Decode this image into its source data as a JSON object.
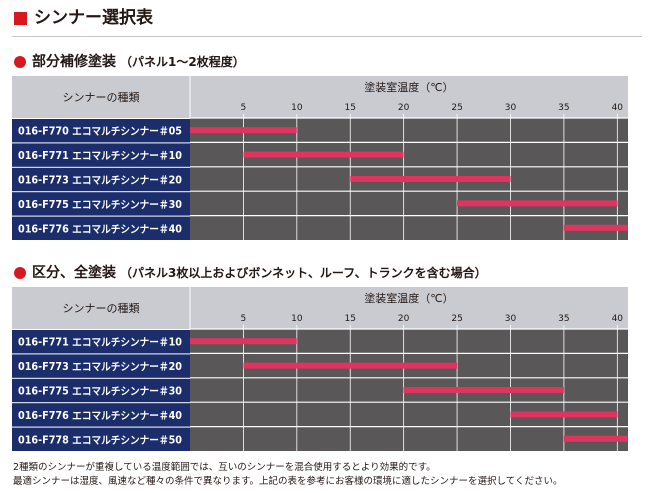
{
  "page": {
    "title": "シンナー選択表"
  },
  "chart_data": [
    {
      "type": "bar",
      "title": "部分補修塗装",
      "subtitle": "（パネル1〜2枚程度）",
      "row_header": "シンナーの種類",
      "xlabel": "塗装室温度（℃）",
      "x_ticks": [
        "5",
        "10",
        "15",
        "20",
        "25",
        "30",
        "35",
        "40"
      ],
      "xlim": [
        0,
        41
      ],
      "grid": true,
      "rows": [
        {
          "name": "016-F770 エコマルチシンナー＃05",
          "range": [
            0,
            10
          ]
        },
        {
          "name": "016-F771 エコマルチシンナー＃10",
          "range": [
            5,
            20
          ]
        },
        {
          "name": "016-F773 エコマルチシンナー＃20",
          "range": [
            15,
            30
          ]
        },
        {
          "name": "016-F775 エコマルチシンナー＃30",
          "range": [
            25,
            40
          ]
        },
        {
          "name": "016-F776 エコマルチシンナー＃40",
          "range": [
            35,
            41
          ]
        }
      ]
    },
    {
      "type": "bar",
      "title": "区分、全塗装",
      "subtitle": "（パネル3枚以上およびボンネット、ルーフ、トランクを含む場合）",
      "row_header": "シンナーの種類",
      "xlabel": "塗装室温度（℃）",
      "x_ticks": [
        "5",
        "10",
        "15",
        "20",
        "25",
        "30",
        "35",
        "40"
      ],
      "xlim": [
        0,
        41
      ],
      "grid": true,
      "rows": [
        {
          "name": "016-F771 エコマルチシンナー＃10",
          "range": [
            0,
            10
          ]
        },
        {
          "name": "016-F773 エコマルチシンナー＃20",
          "range": [
            5,
            25
          ]
        },
        {
          "name": "016-F775 エコマルチシンナー＃30",
          "range": [
            20,
            35
          ]
        },
        {
          "name": "016-F776 エコマルチシンナー＃40",
          "range": [
            30,
            40
          ]
        },
        {
          "name": "016-F778 エコマルチシンナー＃50",
          "range": [
            35,
            41
          ]
        }
      ]
    }
  ],
  "footnotes": [
    "2種類のシンナーが重複している温度範囲では、互いのシンナーを混合使用するとより効果的です。",
    "最適シンナーは湿度、風速など種々の条件で異なります。上記の表を参考にお客様の環境に適したシンナーを選択してください。"
  ],
  "colors": {
    "header_bg": "#c9cbd1",
    "row_label_bg": "#1b2e6b",
    "plot_bg": "#595757",
    "bar": "#e0335f",
    "grid": "#ffffff",
    "accent": "#d7191f"
  }
}
